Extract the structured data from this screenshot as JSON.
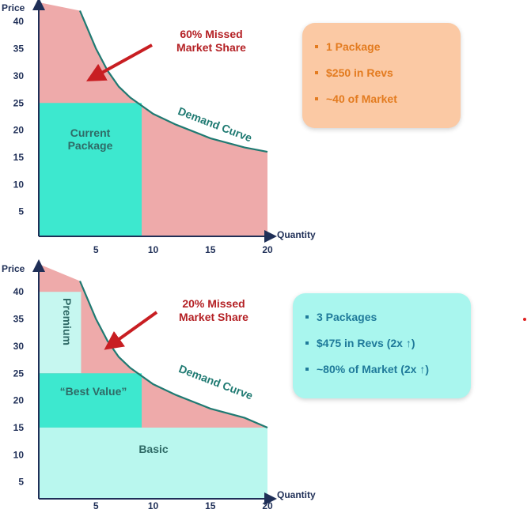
{
  "chart_data": [
    {
      "type": "area",
      "xlabel": "Quantity",
      "ylabel": "Price",
      "xlim": [
        0,
        20
      ],
      "ylim": [
        0,
        42
      ],
      "x_ticks": [
        5,
        10,
        15,
        20
      ],
      "y_ticks": [
        5,
        10,
        15,
        20,
        25,
        30,
        35,
        40
      ],
      "demand_curve": {
        "label": "Demand Curve",
        "points": [
          [
            3.6,
            42
          ],
          [
            4,
            40
          ],
          [
            5,
            35
          ],
          [
            6,
            31
          ],
          [
            7,
            28
          ],
          [
            8,
            26
          ],
          [
            10,
            23
          ],
          [
            12,
            21
          ],
          [
            15,
            18.5
          ],
          [
            18,
            16.8
          ],
          [
            20,
            16
          ]
        ]
      },
      "packages": [
        {
          "label": "Current Package",
          "x0": 0,
          "x1": 9,
          "y0": 0,
          "y1": 25,
          "color": "#3de8cf"
        }
      ],
      "annotation": {
        "text": "60% Missed Market Share",
        "lines": [
          "60% Missed",
          "Market Share"
        ]
      },
      "colors": {
        "missed": "#eeaaaa",
        "curve": "#1f7a72",
        "axis": "#1f2f57",
        "arrow": "#c81e22"
      }
    },
    {
      "type": "area",
      "xlabel": "Quantity",
      "ylabel": "Price",
      "xlim": [
        0,
        20
      ],
      "ylim": [
        0,
        42
      ],
      "x_ticks": [
        5,
        10,
        15,
        20
      ],
      "y_ticks": [
        5,
        10,
        15,
        20,
        25,
        30,
        35,
        40
      ],
      "demand_curve": {
        "label": "Demand Curve",
        "points": [
          [
            3.6,
            42
          ],
          [
            4,
            40
          ],
          [
            5,
            35
          ],
          [
            6,
            31
          ],
          [
            7,
            28
          ],
          [
            8,
            26
          ],
          [
            10,
            23
          ],
          [
            12,
            21
          ],
          [
            15,
            18.5
          ],
          [
            18,
            16.8
          ],
          [
            20,
            15
          ]
        ]
      },
      "packages": [
        {
          "label": "Premium",
          "x0": 0,
          "x1": 3.7,
          "y0": 25,
          "y1": 40,
          "color": "#c6f7f0",
          "vertical": true
        },
        {
          "label": "“Best Value”",
          "x0": 0,
          "x1": 9,
          "y0": 15,
          "y1": 25,
          "color": "#3de8cf"
        },
        {
          "label": "Basic",
          "x0": 0,
          "x1": 20,
          "y0": 0,
          "y1": 15,
          "color": "#b9f7ee"
        }
      ],
      "annotation": {
        "text": "20% Missed Market Share",
        "lines": [
          "20% Missed",
          "Market Share"
        ]
      },
      "colors": {
        "missed": "#eeaaaa",
        "curve": "#1f7a72",
        "axis": "#1f2f57",
        "arrow": "#c81e22"
      }
    }
  ],
  "box1": {
    "items": [
      "1 Package",
      "$250 in Revs",
      "~40 of Market"
    ],
    "color": "#fbc9a4"
  },
  "box2": {
    "items": [
      "3 Packages",
      "$475 in Revs (2x ↑)",
      "~80% of Market (2x ↑)"
    ],
    "color": "#a9f6ee"
  }
}
